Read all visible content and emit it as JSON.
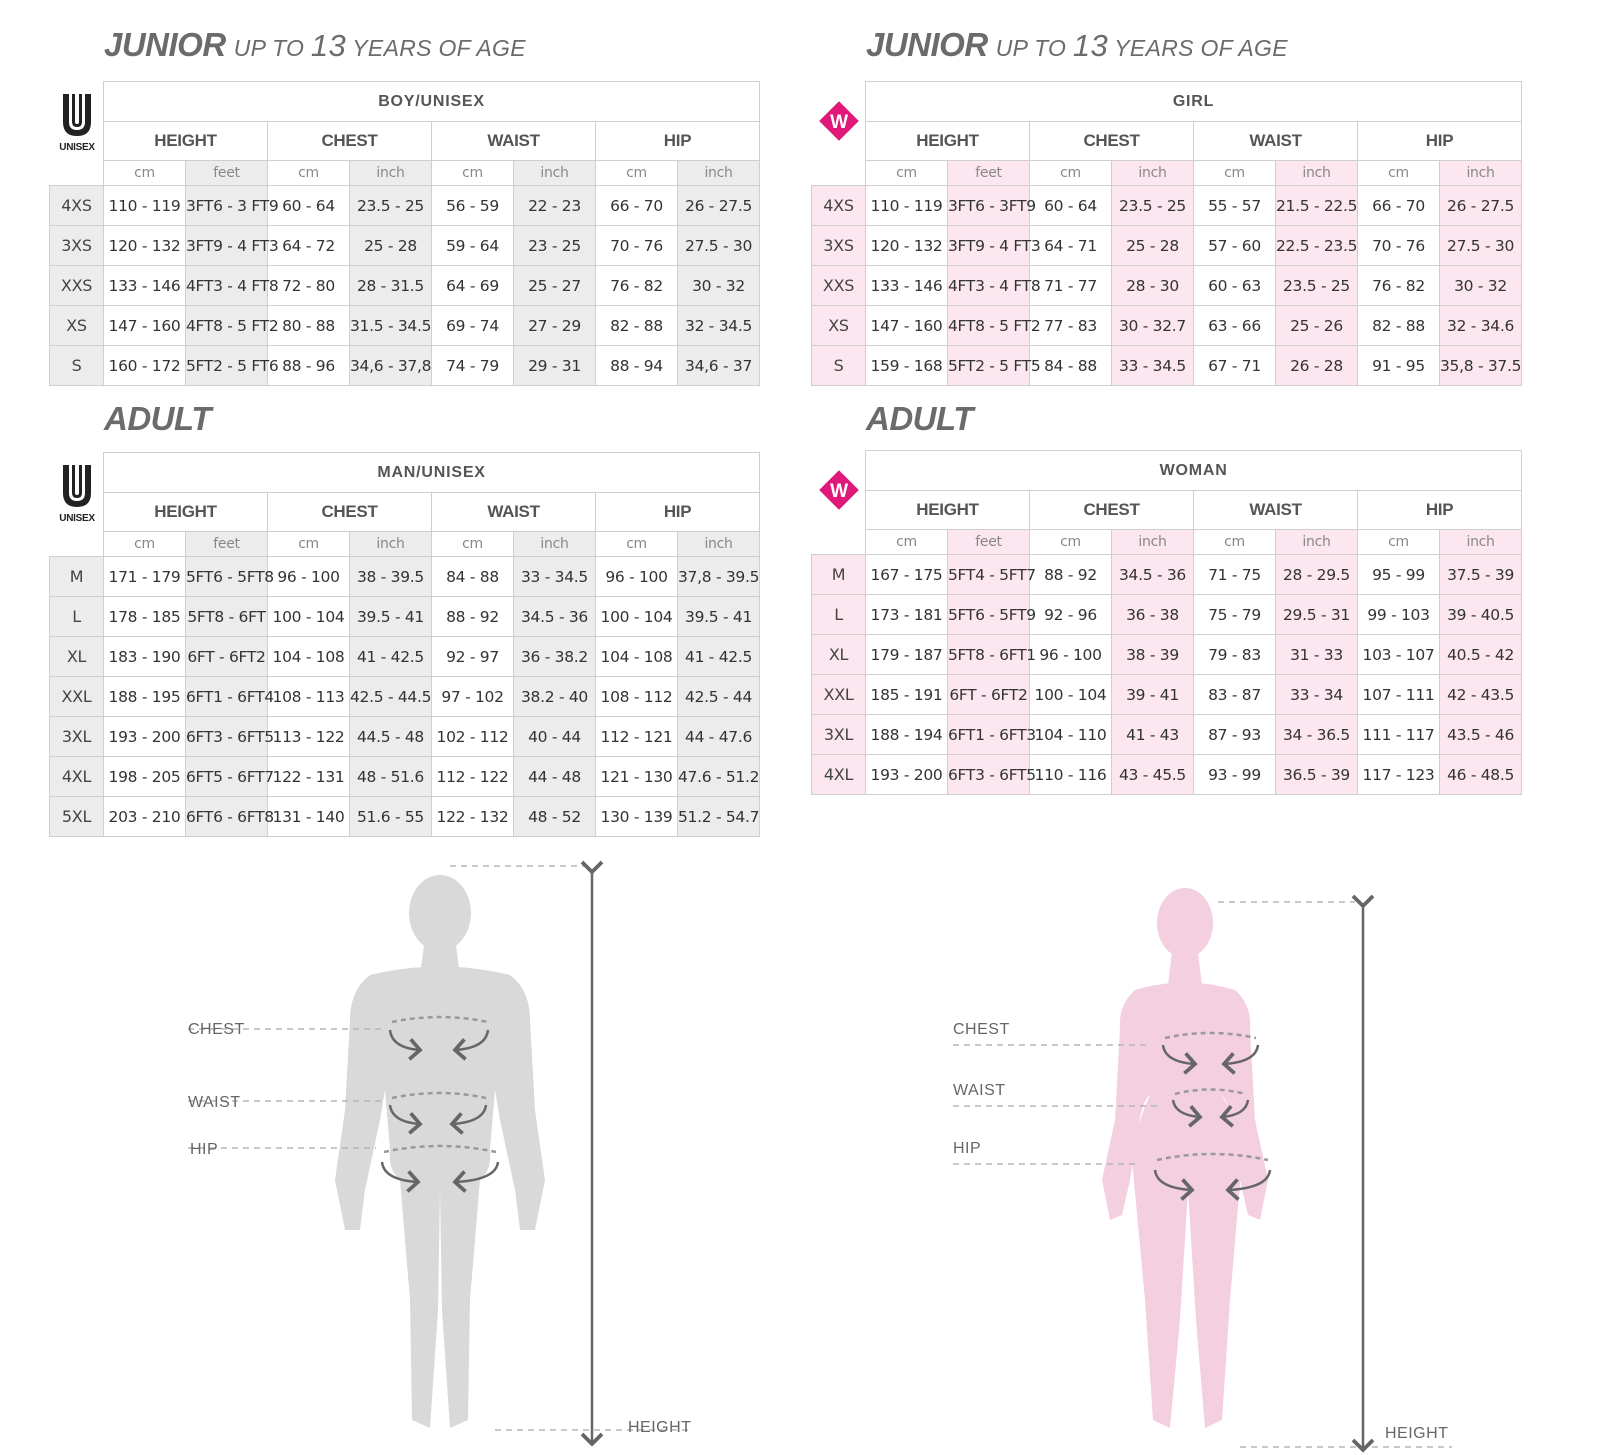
{
  "sections": {
    "junior_left": {
      "title_strong": "JUNIOR",
      "title_pre": "UP TO",
      "title_num": "13",
      "title_post": "YEARS OF AGE"
    },
    "junior_right": {
      "title_strong": "JUNIOR",
      "title_pre": "UP TO",
      "title_num": "13",
      "title_post": "YEARS OF AGE"
    },
    "adult_left": {
      "title_strong": "ADULT"
    },
    "adult_right": {
      "title_strong": "ADULT"
    }
  },
  "logos": {
    "unisex_letter": "U",
    "unisex_caption": "UNISEX",
    "woman_letter": "W"
  },
  "measure_headers": [
    "HEIGHT",
    "CHEST",
    "WAIST",
    "HIP"
  ],
  "unit_headers": [
    "cm",
    "feet",
    "cm",
    "inch",
    "cm",
    "inch",
    "cm",
    "inch"
  ],
  "tables": {
    "boy": {
      "group": "BOY/UNISEX",
      "rows": [
        [
          "4XS",
          "110 - 119",
          "3FT6 - 3 FT9",
          "60 - 64",
          "23.5 - 25",
          "56 - 59",
          "22 - 23",
          "66 - 70",
          "26 - 27.5"
        ],
        [
          "3XS",
          "120 - 132",
          "3FT9 - 4 FT3",
          "64 - 72",
          "25 - 28",
          "59 - 64",
          "23 - 25",
          "70 - 76",
          "27.5 - 30"
        ],
        [
          "XXS",
          "133 - 146",
          "4FT3 - 4 FT8",
          "72 - 80",
          "28 - 31.5",
          "64 - 69",
          "25 - 27",
          "76 - 82",
          "30 - 32"
        ],
        [
          "XS",
          "147 - 160",
          "4FT8 - 5 FT2",
          "80 - 88",
          "31.5 - 34.5",
          "69 - 74",
          "27 - 29",
          "82 - 88",
          "32 - 34.5"
        ],
        [
          "S",
          "160 - 172",
          "5FT2 - 5 FT6",
          "88 - 96",
          "34,6 - 37,8",
          "74 - 79",
          "29 - 31",
          "88 - 94",
          "34,6 - 37"
        ]
      ]
    },
    "girl": {
      "group": "GIRL",
      "rows": [
        [
          "4XS",
          "110 - 119",
          "3FT6 - 3FT9",
          "60 - 64",
          "23.5 - 25",
          "55 - 57",
          "21.5 - 22.5",
          "66 - 70",
          "26 - 27.5"
        ],
        [
          "3XS",
          "120 - 132",
          "3FT9 - 4 FT3",
          "64 - 71",
          "25 - 28",
          "57 - 60",
          "22.5 - 23.5",
          "70 - 76",
          "27.5 - 30"
        ],
        [
          "XXS",
          "133 - 146",
          "4FT3 - 4 FT8",
          "71 - 77",
          "28 - 30",
          "60 - 63",
          "23.5 - 25",
          "76 - 82",
          "30 - 32"
        ],
        [
          "XS",
          "147 - 160",
          "4FT8 - 5 FT2",
          "77 - 83",
          "30 - 32.7",
          "63 - 66",
          "25 - 26",
          "82 - 88",
          "32 - 34.6"
        ],
        [
          "S",
          "159 - 168",
          "5FT2 - 5 FT5",
          "84 - 88",
          "33 - 34.5",
          "67 - 71",
          "26 - 28",
          "91 - 95",
          "35,8 - 37.5"
        ]
      ]
    },
    "man": {
      "group": "MAN/UNISEX",
      "rows": [
        [
          "M",
          "171 - 179",
          "5FT6 - 5FT8",
          "96 - 100",
          "38 - 39.5",
          "84 - 88",
          "33 - 34.5",
          "96 - 100",
          "37,8 - 39.5"
        ],
        [
          "L",
          "178 - 185",
          "5FT8 - 6FT",
          "100 - 104",
          "39.5 - 41",
          "88 - 92",
          "34.5 - 36",
          "100 - 104",
          "39.5 - 41"
        ],
        [
          "XL",
          "183 - 190",
          "6FT - 6FT2",
          "104 - 108",
          "41 - 42.5",
          "92 - 97",
          "36 - 38.2",
          "104 - 108",
          "41 - 42.5"
        ],
        [
          "XXL",
          "188 - 195",
          "6FT1 - 6FT4",
          "108 - 113",
          "42.5 - 44.5",
          "97 - 102",
          "38.2 - 40",
          "108 - 112",
          "42.5 - 44"
        ],
        [
          "3XL",
          "193 - 200",
          "6FT3 - 6FT5",
          "113 - 122",
          "44.5 - 48",
          "102 - 112",
          "40 - 44",
          "112 - 121",
          "44 - 47.6"
        ],
        [
          "4XL",
          "198 - 205",
          "6FT5 - 6FT7",
          "122 - 131",
          "48 - 51.6",
          "112 - 122",
          "44 - 48",
          "121 - 130",
          "47.6 - 51.2"
        ],
        [
          "5XL",
          "203 - 210",
          "6FT6 - 6FT8",
          "131 - 140",
          "51.6 - 55",
          "122 - 132",
          "48 - 52",
          "130 - 139",
          "51.2 - 54.7"
        ]
      ]
    },
    "woman": {
      "group": "WOMAN",
      "rows": [
        [
          "M",
          "167 - 175",
          "5FT4 - 5FT7",
          "88 - 92",
          "34.5 - 36",
          "71 - 75",
          "28 - 29.5",
          "95 - 99",
          "37.5 - 39"
        ],
        [
          "L",
          "173 - 181",
          "5FT6 - 5FT9",
          "92 - 96",
          "36 - 38",
          "75 - 79",
          "29.5 - 31",
          "99 - 103",
          "39 - 40.5"
        ],
        [
          "XL",
          "179 - 187",
          "5FT8 - 6FT1",
          "96 - 100",
          "38 - 39",
          "79 - 83",
          "31 - 33",
          "103 - 107",
          "40.5 - 42"
        ],
        [
          "XXL",
          "185 - 191",
          "6FT - 6FT2",
          "100 - 104",
          "39 - 41",
          "83 - 87",
          "33 - 34",
          "107 - 111",
          "42 - 43.5"
        ],
        [
          "3XL",
          "188 - 194",
          "6FT1 - 6FT3",
          "104 - 110",
          "41 - 43",
          "87 - 93",
          "34 - 36.5",
          "111 - 117",
          "43.5 - 46"
        ],
        [
          "4XL",
          "193 - 200",
          "6FT3 - 6FT5",
          "110 - 116",
          "43 - 45.5",
          "93 - 99",
          "36.5 - 39",
          "117 - 123",
          "46 - 48.5"
        ]
      ]
    }
  },
  "figures": {
    "male": {
      "chest": "CHEST",
      "waist": "WAIST",
      "hip": "HIP",
      "height": "HEIGHT"
    },
    "female": {
      "chest": "CHEST",
      "waist": "WAIST",
      "hip": "HIP",
      "height": "HEIGHT"
    }
  },
  "colors": {
    "accent_pink": "#e0187a",
    "pink_tint": "#fce6ef",
    "grey_tint": "#ececec",
    "male_silhouette": "#d9d9d9",
    "female_silhouette": "#f3cfe0",
    "arrow": "#666666"
  }
}
